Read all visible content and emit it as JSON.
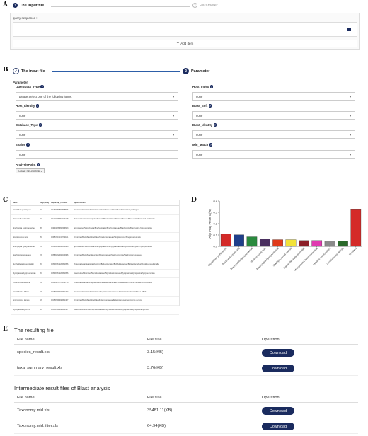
{
  "panel_letters": {
    "a": "A",
    "b": "B",
    "c": "C",
    "d": "D",
    "e": "E"
  },
  "panel_a": {
    "steps": [
      {
        "num": "1",
        "label": "The input file"
      },
      {
        "num": "2",
        "label": "Parameter"
      }
    ],
    "query_label": "query sequence :",
    "add_item_label": "Add item"
  },
  "panel_b": {
    "steps": [
      {
        "num": "✓",
        "label": "The input file"
      },
      {
        "num": "2",
        "label": "Parameter"
      }
    ],
    "parameter_heading": "Parameter",
    "query_data_type": {
      "label": "QueryData_Type",
      "value": "please Select one of the following items:"
    },
    "host_identity": {
      "label": "Host_Identity",
      "value": "none"
    },
    "database_type": {
      "label": "Database_Type",
      "value": "none"
    },
    "evalue": {
      "label": "Evalue",
      "value": "none"
    },
    "analysis_point": {
      "label": "AnalysisPoint",
      "value": "NONE SELECTED"
    },
    "host_index": {
      "label": "Host_Index",
      "value": "none"
    },
    "blast_soft": {
      "label": "Blast_Soft",
      "value": "none"
    },
    "blast_identity": {
      "label": "Blast_Identity",
      "value": "none"
    },
    "min_match": {
      "label": "Min_Match",
      "value": "none"
    }
  },
  "panel_c": {
    "headers": [
      "Hash",
      "Align_Fragment",
      "AlignFrag_Percent",
      "SpeciesLevel"
    ],
    "rows": [
      [
        "Clostridium perfringens",
        "40",
        "0.1066080860658596",
        "Firmicutes/Clostridia/Clostridiales/Clostridiaceae/Clostridium/Clostridium perfringens"
      ],
      [
        "Pasteurella multocida",
        "40",
        "0.1019735353197248",
        "Proteobacteria/Gammaproteobacteria/Pasteurellales/Pasteurellaceae/Pasteurella/Pasteurella multocida"
      ],
      [
        "Brachyspira hyodysenteriae",
        "28",
        "0.0840835960366663",
        "Spirochaetes/Spirochaetia/Brachyspirales/Brachyspiraceae/Brachyspira/Brachyspira hyodysenteriae"
      ],
      [
        "Streptococcus suis",
        "26",
        "0.0653747133702181",
        "Firmicutes/Bacilli/Lactobacillales/Streptococcaceae/Streptococcus/Streptococcus suis"
      ],
      [
        "Brachyspira hyodysenteriae",
        "23",
        "0.0586232008040986",
        "Spirochaetes/Spirochaetia/Brachyspirales/Brachyspiraceae/Brachyspira/Brachyspira hyodysenteriae"
      ],
      [
        "Staphylococcus aureus",
        "23",
        "0.0586232008040986",
        "Firmicutes/Bacilli/Bacillales/Staphylococcaceae/Staphylococcus/Staphylococcus aureus"
      ],
      [
        "Burkholderia pseudomallei",
        "20",
        "0.0509767220991956",
        "Proteobacteria/Betaproteobacteria/Burkholderiales/Burkholderiaceae/Burkholderia/Burkholderia pseudomallei"
      ],
      [
        "Mycoplasma hyopneumoniae",
        "20",
        "0.0509767220991956",
        "Tenericutes/Mollicutes/Mycoplasmatales/Mycoplasmataceae/Mycoplasma/Mycoplasma hyopneumoniae"
      ],
      [
        "Yersinia enterocolitica",
        "19",
        "0.0484278737976716",
        "Proteobacteria/Gammaproteobacteria/Enterobacterales/Yersiniaceae/Yersinia/Yersinia enterocolitica"
      ],
      [
        "Clostridioides difficile",
        "18",
        "0.0458790498961467",
        "Firmicutes/Clostridia/Clostridiales/Peptostreptococcaceae/Clostridioides/Clostridioides difficile"
      ],
      [
        "Enterococcus durans",
        "18",
        "0.0458790498961467",
        "Firmicutes/Bacilli/Lactobacillales/Enterococcaceae/Enterococcus/Enterococcus durans"
      ],
      [
        "Mycoplasma hyorhinis",
        "18",
        "0.0458790498961467",
        "Tenericutes/Mollicutes/Mycoplasmatales/Mycoplasmataceae/Mycoplasma/Mycoplasma hyorhinis"
      ]
    ]
  },
  "chart_data": {
    "type": "bar",
    "title": "",
    "xlabel": "",
    "ylabel": "AlignFrag Percent (%)",
    "ylim": [
      0,
      0.4
    ],
    "yticks": [
      "0.0",
      "0.1",
      "0.2",
      "0.3",
      "0.4"
    ],
    "categories": [
      "Clostridium perfringens",
      "Pasteurella multocida",
      "Brachyspira hyodysenteriae",
      "Streptococcus suis",
      "Brachyspira hyodysenteriae",
      "Staphylococcus aureus",
      "Burkholderia pseudomallei",
      "Mycoplasma hyopneumoniae",
      "Yersinia enterocolitica",
      "Clostridioides difficile",
      "11 others"
    ],
    "values": [
      0.107,
      0.102,
      0.084,
      0.065,
      0.059,
      0.059,
      0.051,
      0.051,
      0.048,
      0.046,
      0.33
    ],
    "colors": [
      "#d42a28",
      "#1f3f8a",
      "#2a8a3e",
      "#4a2f5f",
      "#e03a1a",
      "#f2e23a",
      "#8a1f28",
      "#e03ab0",
      "#8a8a8a",
      "#2a6a2a",
      "#d42a28"
    ],
    "grid": false,
    "legend": "none"
  },
  "panel_e": {
    "section1_title": "The resulting file",
    "section2_title": "Intermediate result files of Blast analysis",
    "headers": {
      "name": "File name",
      "size": "File size",
      "op": "Operation"
    },
    "files1": [
      {
        "name": "species_result.xls",
        "size": "3.15(KB)",
        "action": "Download"
      },
      {
        "name": "taxa_summary_result.xls",
        "size": "3.76(KB)",
        "action": "Download"
      }
    ],
    "files2": [
      {
        "name": "Taxonomy.mid.xls",
        "size": "35481.11(KB)",
        "action": "Download"
      },
      {
        "name": "Taxonomy.mid.filter.xls",
        "size": "64.94(KB)",
        "action": "Download"
      }
    ]
  }
}
